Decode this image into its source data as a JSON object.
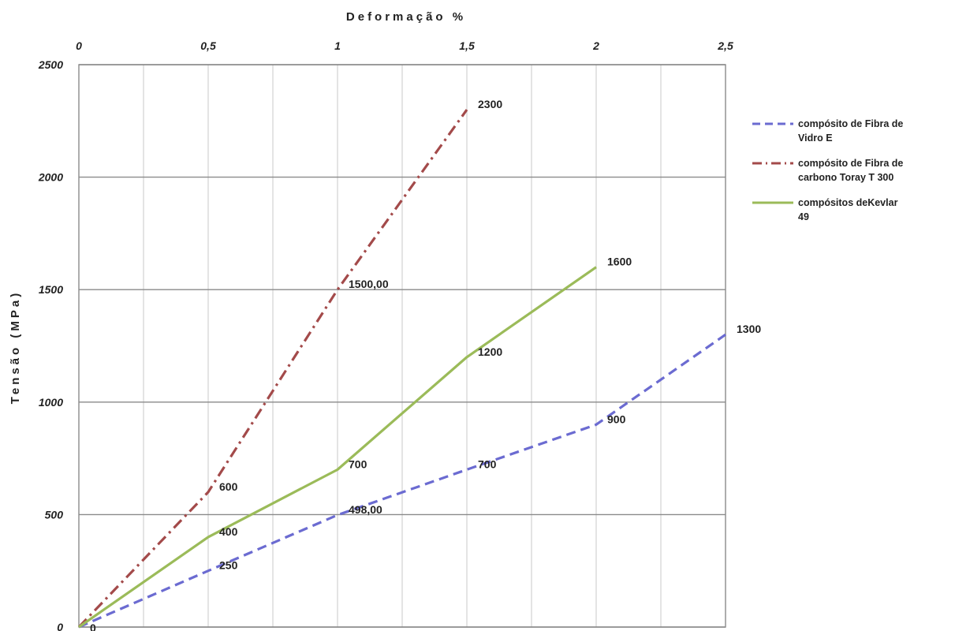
{
  "chart_data": {
    "type": "line",
    "xlabel": "Deformação %",
    "ylabel": "Tensão (MPa)",
    "x_axis_position": "top",
    "xlim": [
      0,
      2.5
    ],
    "ylim": [
      0,
      2500
    ],
    "x_ticks": [
      "0",
      "0,5",
      "1",
      "1,5",
      "2",
      "2,5"
    ],
    "y_ticks": [
      "0",
      "500",
      "1000",
      "1500",
      "2000",
      "2500"
    ],
    "grid": true,
    "legend_position": "right",
    "series": [
      {
        "name": "compósito de Fibra de Vidro E",
        "color": "#6b6bd1",
        "dash": "dashed",
        "points": [
          [
            0,
            0
          ],
          [
            0.5,
            250
          ],
          [
            1,
            498
          ],
          [
            1.5,
            700
          ],
          [
            2,
            900
          ],
          [
            2.5,
            1300
          ]
        ],
        "labels": [
          "0",
          "250",
          "498,00",
          "700",
          "900",
          "1300"
        ]
      },
      {
        "name": "compósito de Fibra de carbono Toray T 300",
        "color": "#a34a4a",
        "dash": "dash-dot",
        "points": [
          [
            0,
            0
          ],
          [
            0.5,
            600
          ],
          [
            1,
            1500
          ],
          [
            1.5,
            2300
          ]
        ],
        "labels": [
          "0",
          "600",
          "1500,00",
          "2300"
        ]
      },
      {
        "name": "compósitos deKevlar 49",
        "color": "#9bbb59",
        "dash": "solid",
        "points": [
          [
            0,
            0
          ],
          [
            0.5,
            400
          ],
          [
            1,
            700
          ],
          [
            1.5,
            1200
          ],
          [
            2,
            1600
          ]
        ],
        "labels": [
          "0",
          "400",
          "700",
          "1200",
          "1600"
        ]
      }
    ]
  },
  "legend": {
    "items": [
      {
        "line1": "compósito de Fibra de",
        "line2": "Vidro E"
      },
      {
        "line1": "compósito de Fibra de",
        "line2": "carbono Toray  T 300"
      },
      {
        "line1": "compósitos deKevlar",
        "line2": "49"
      }
    ]
  }
}
